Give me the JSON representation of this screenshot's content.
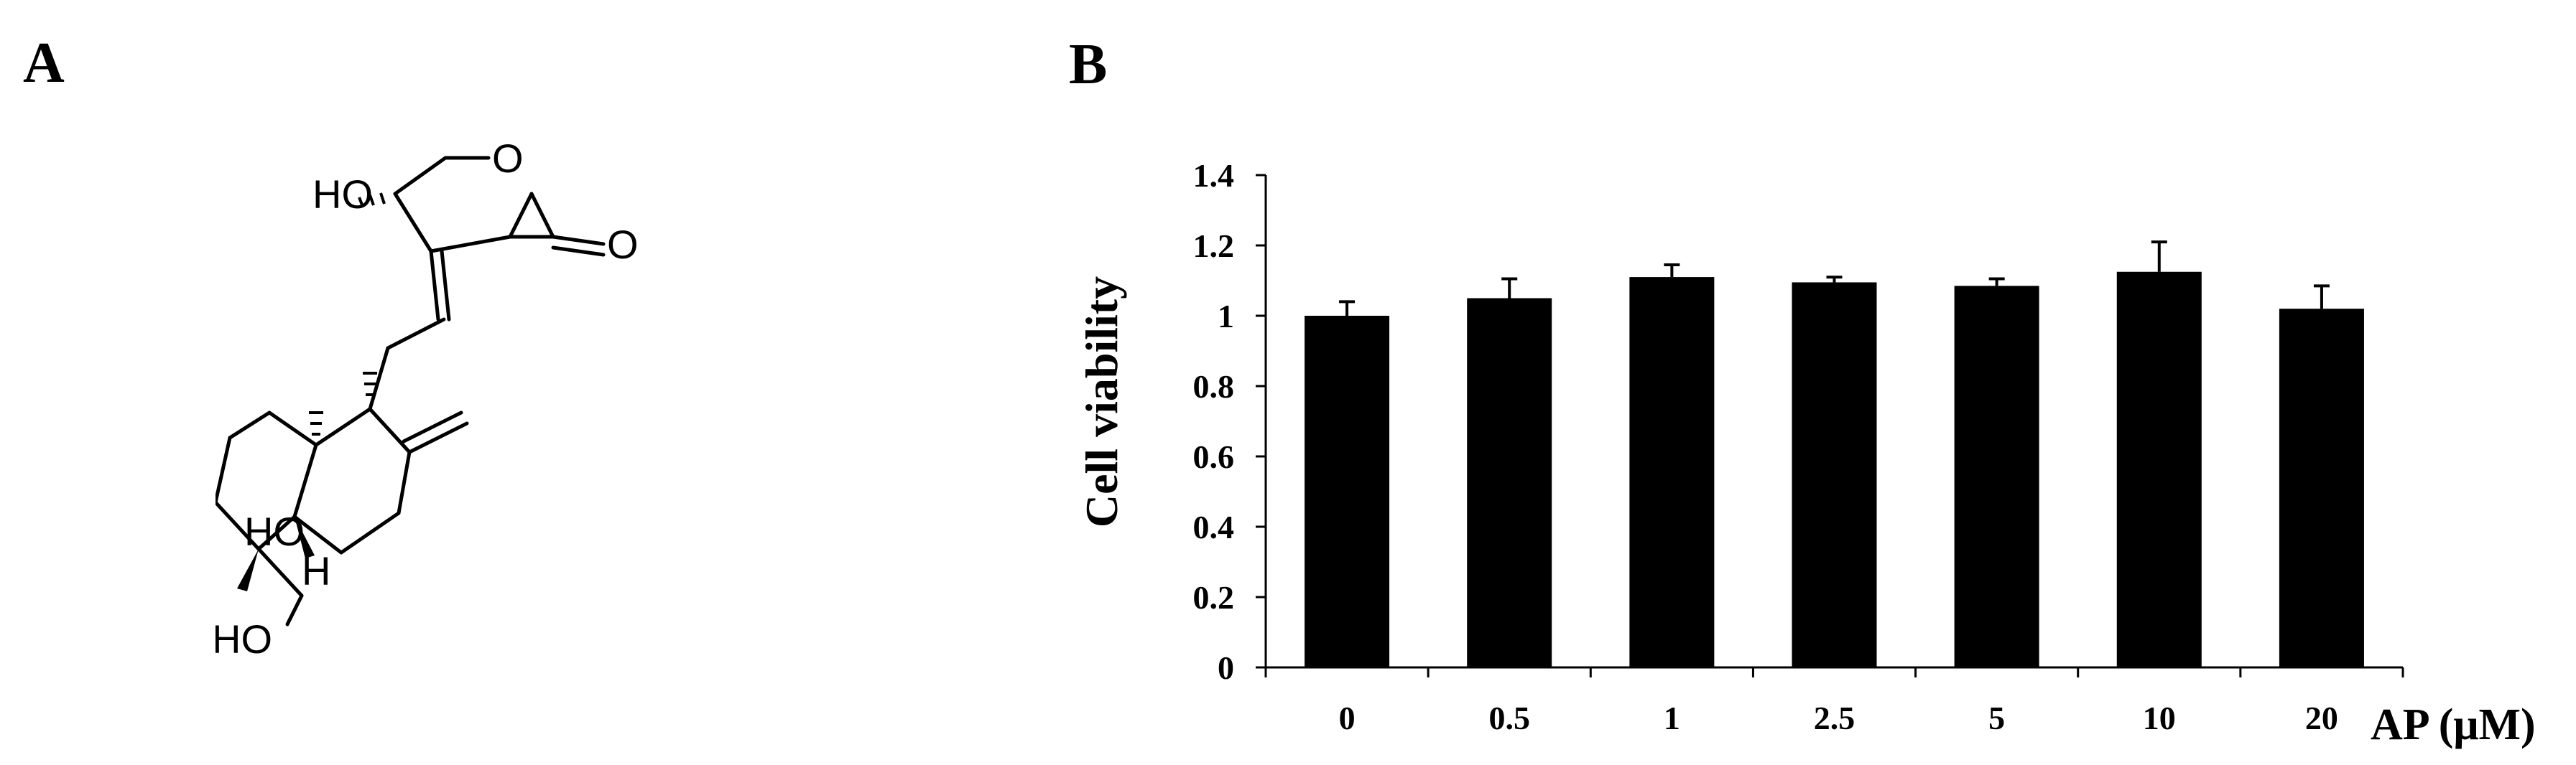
{
  "panels": {
    "a_label": "A",
    "b_label": "B"
  },
  "structure": {
    "labels": [
      "HO",
      "O",
      "O",
      "HO",
      "H",
      "HO"
    ]
  },
  "chart_data": {
    "type": "bar",
    "categories": [
      "0",
      "0.5",
      "1",
      "2.5",
      "5",
      "10",
      "20"
    ],
    "values": [
      1.0,
      1.05,
      1.11,
      1.095,
      1.085,
      1.125,
      1.02
    ],
    "errors": [
      0.04,
      0.055,
      0.035,
      0.015,
      0.02,
      0.085,
      0.065
    ],
    "xlabel": "AP (μM)",
    "ylabel": "Cell viability",
    "ylim": [
      0,
      1.4
    ],
    "yticks": [
      "0",
      "0.2",
      "0.4",
      "0.6",
      "0.8",
      "1",
      "1.2",
      "1.4"
    ],
    "bar_color": "#000000",
    "grid": false,
    "legend": "none"
  }
}
